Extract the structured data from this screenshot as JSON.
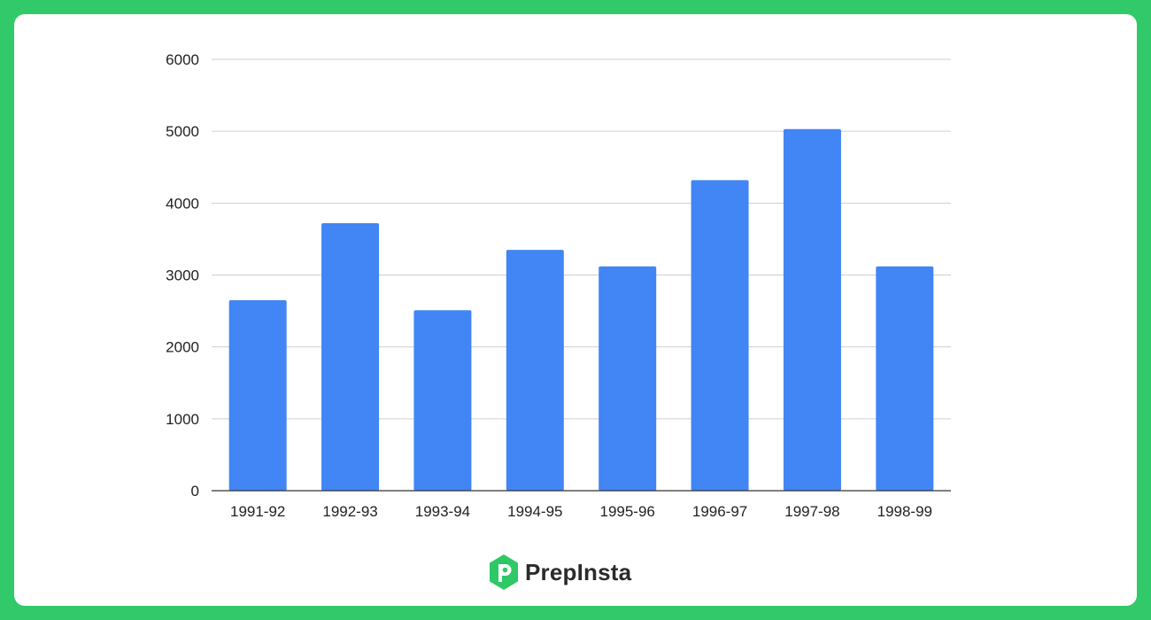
{
  "chart_data": {
    "type": "bar",
    "categories": [
      "1991-92",
      "1992-93",
      "1993-94",
      "1994-95",
      "1995-96",
      "1996-97",
      "1997-98",
      "1998-99"
    ],
    "values": [
      2650,
      3720,
      2510,
      3350,
      3120,
      4320,
      5030,
      3120
    ],
    "title": "",
    "xlabel": "",
    "ylabel": "",
    "ylim": [
      0,
      6000
    ],
    "yticks": [
      0,
      1000,
      2000,
      3000,
      4000,
      5000,
      6000
    ],
    "grid": true,
    "bar_color": "#4285f4"
  },
  "brand": {
    "name": "PrepInsta",
    "logo_color": "#2ec866"
  }
}
